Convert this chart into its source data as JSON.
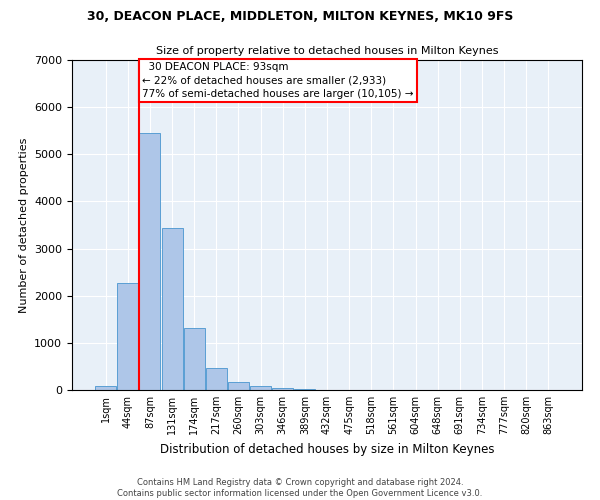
{
  "title": "30, DEACON PLACE, MIDDLETON, MILTON KEYNES, MK10 9FS",
  "subtitle": "Size of property relative to detached houses in Milton Keynes",
  "xlabel": "Distribution of detached houses by size in Milton Keynes",
  "ylabel": "Number of detached properties",
  "footer_line1": "Contains HM Land Registry data © Crown copyright and database right 2024.",
  "footer_line2": "Contains public sector information licensed under the Open Government Licence v3.0.",
  "bar_labels": [
    "1sqm",
    "44sqm",
    "87sqm",
    "131sqm",
    "174sqm",
    "217sqm",
    "260sqm",
    "303sqm",
    "346sqm",
    "389sqm",
    "432sqm",
    "475sqm",
    "518sqm",
    "561sqm",
    "604sqm",
    "648sqm",
    "691sqm",
    "734sqm",
    "777sqm",
    "820sqm",
    "863sqm"
  ],
  "bar_values": [
    90,
    2270,
    5460,
    3440,
    1310,
    460,
    160,
    90,
    50,
    30,
    0,
    0,
    0,
    0,
    0,
    0,
    0,
    0,
    0,
    0,
    0
  ],
  "bar_color": "#aec6e8",
  "bar_edgecolor": "#5a9fd4",
  "background_color": "#e8f0f8",
  "grid_color": "#ffffff",
  "annotation_text": "  30 DEACON PLACE: 93sqm\n← 22% of detached houses are smaller (2,933)\n77% of semi-detached houses are larger (10,105) →",
  "redline_bar_index": 2,
  "ylim": [
    0,
    7000
  ],
  "yticks": [
    0,
    1000,
    2000,
    3000,
    4000,
    5000,
    6000,
    7000
  ]
}
